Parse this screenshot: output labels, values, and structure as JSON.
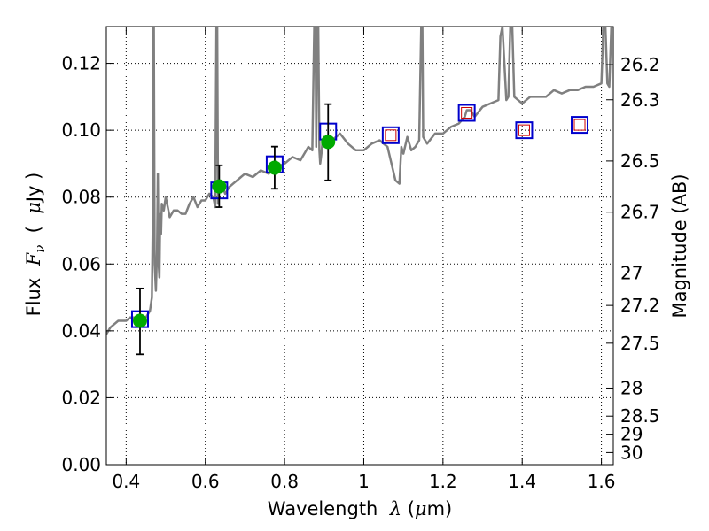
{
  "chart_data": {
    "type": "scatter",
    "title": "",
    "xlabel": {
      "prefix": "Wavelength  ",
      "lambda": "λ",
      "unit_open": " (",
      "mu": "μ",
      "unit_close": "m)"
    },
    "ylabel": {
      "prefix": "Flux  ",
      "symbol": "F",
      "sub": "ν",
      "unit_open": "  (  ",
      "mu": "μ",
      "unit_close": "Jy )"
    },
    "y2label": "Magnitude (AB)",
    "xlim": [
      0.35,
      1.63
    ],
    "ylim": [
      0.0,
      0.131
    ],
    "grid": true,
    "x_ticks": [
      {
        "v": 0.4,
        "label": "0.4"
      },
      {
        "v": 0.6,
        "label": "0.6"
      },
      {
        "v": 0.8,
        "label": "0.8"
      },
      {
        "v": 1.0,
        "label": "1"
      },
      {
        "v": 1.2,
        "label": "1.2"
      },
      {
        "v": 1.4,
        "label": "1.4"
      },
      {
        "v": 1.6,
        "label": "1.6"
      }
    ],
    "y_ticks": [
      {
        "v": 0.0,
        "label": "0.00"
      },
      {
        "v": 0.02,
        "label": "0.02"
      },
      {
        "v": 0.04,
        "label": "0.04"
      },
      {
        "v": 0.06,
        "label": "0.06"
      },
      {
        "v": 0.08,
        "label": "0.08"
      },
      {
        "v": 0.1,
        "label": "0.10"
      },
      {
        "v": 0.12,
        "label": "0.12"
      }
    ],
    "y2_ticks": [
      {
        "label": "26.2",
        "flux": 0.1196
      },
      {
        "label": "26.3",
        "flux": 0.1091
      },
      {
        "label": "26.5",
        "flux": 0.0908
      },
      {
        "label": "26.7",
        "flux": 0.0755
      },
      {
        "label": "27",
        "flux": 0.0573
      },
      {
        "label": "27.2",
        "flux": 0.0476
      },
      {
        "label": "27.5",
        "flux": 0.0363
      },
      {
        "label": "28",
        "flux": 0.0229
      },
      {
        "label": "28.5",
        "flux": 0.0145
      },
      {
        "label": "29",
        "flux": 0.0091
      },
      {
        "label": "30",
        "flux": 0.0036
      }
    ],
    "colors": {
      "spectrum": "#808080",
      "observed": "#00aa00",
      "errorbar": "#000000",
      "model_band": "#0000cc",
      "model_band_inner": "#cc0000",
      "grid": "#000000"
    },
    "spectrum": {
      "x": [
        0.35,
        0.36,
        0.37,
        0.38,
        0.39,
        0.4,
        0.41,
        0.42,
        0.43,
        0.44,
        0.45,
        0.46,
        0.465,
        0.467,
        0.468,
        0.47,
        0.472,
        0.475,
        0.478,
        0.48,
        0.482,
        0.484,
        0.486,
        0.488,
        0.49,
        0.495,
        0.5,
        0.505,
        0.51,
        0.52,
        0.53,
        0.54,
        0.55,
        0.56,
        0.57,
        0.58,
        0.59,
        0.6,
        0.61,
        0.62,
        0.625,
        0.628,
        0.63,
        0.632,
        0.635,
        0.64,
        0.65,
        0.66,
        0.67,
        0.68,
        0.69,
        0.7,
        0.72,
        0.74,
        0.76,
        0.78,
        0.8,
        0.82,
        0.84,
        0.86,
        0.87,
        0.875,
        0.878,
        0.88,
        0.882,
        0.885,
        0.888,
        0.89,
        0.893,
        0.896,
        0.9,
        0.92,
        0.94,
        0.96,
        0.98,
        1.0,
        1.02,
        1.04,
        1.06,
        1.08,
        1.09,
        1.095,
        1.1,
        1.11,
        1.12,
        1.13,
        1.14,
        1.145,
        1.148,
        1.15,
        1.155,
        1.16,
        1.18,
        1.2,
        1.22,
        1.24,
        1.255,
        1.26,
        1.27,
        1.28,
        1.3,
        1.32,
        1.34,
        1.345,
        1.35,
        1.36,
        1.365,
        1.37,
        1.375,
        1.38,
        1.4,
        1.42,
        1.44,
        1.46,
        1.48,
        1.5,
        1.52,
        1.54,
        1.56,
        1.58,
        1.6,
        1.605,
        1.61,
        1.615,
        1.62,
        1.625,
        1.63
      ],
      "y": [
        0.039,
        0.041,
        0.042,
        0.043,
        0.043,
        0.043,
        0.044,
        0.044,
        0.044,
        0.044,
        0.044,
        0.046,
        0.05,
        0.07,
        0.131,
        0.131,
        0.06,
        0.052,
        0.064,
        0.087,
        0.06,
        0.056,
        0.075,
        0.069,
        0.078,
        0.076,
        0.08,
        0.077,
        0.074,
        0.076,
        0.076,
        0.075,
        0.075,
        0.078,
        0.08,
        0.077,
        0.079,
        0.079,
        0.081,
        0.08,
        0.077,
        0.131,
        0.131,
        0.078,
        0.083,
        0.084,
        0.081,
        0.083,
        0.084,
        0.085,
        0.086,
        0.087,
        0.086,
        0.088,
        0.087,
        0.089,
        0.09,
        0.092,
        0.091,
        0.095,
        0.094,
        0.131,
        0.131,
        0.095,
        0.131,
        0.131,
        0.094,
        0.09,
        0.093,
        0.097,
        0.098,
        0.097,
        0.099,
        0.096,
        0.094,
        0.094,
        0.096,
        0.097,
        0.095,
        0.085,
        0.084,
        0.095,
        0.093,
        0.098,
        0.094,
        0.095,
        0.097,
        0.131,
        0.131,
        0.098,
        0.097,
        0.096,
        0.099,
        0.099,
        0.101,
        0.102,
        0.104,
        0.106,
        0.106,
        0.104,
        0.107,
        0.108,
        0.109,
        0.128,
        0.131,
        0.109,
        0.11,
        0.131,
        0.131,
        0.11,
        0.108,
        0.11,
        0.11,
        0.11,
        0.112,
        0.111,
        0.112,
        0.112,
        0.113,
        0.113,
        0.114,
        0.131,
        0.131,
        0.114,
        0.113,
        0.131,
        0.131
      ]
    },
    "observed": [
      {
        "x": 0.435,
        "y": 0.043,
        "yerr_low": 0.01,
        "yerr_high": 0.0097
      },
      {
        "x": 0.635,
        "y": 0.0832,
        "yerr_low": 0.0062,
        "yerr_high": 0.0063
      },
      {
        "x": 0.775,
        "y": 0.0888,
        "yerr_low": 0.0063,
        "yerr_high": 0.0063
      },
      {
        "x": 0.91,
        "y": 0.0965,
        "yerr_low": 0.0115,
        "yerr_high": 0.0113
      }
    ],
    "model_bands": [
      {
        "x": 0.435,
        "y": 0.0435,
        "inner": false
      },
      {
        "x": 0.635,
        "y": 0.082,
        "inner": false
      },
      {
        "x": 0.775,
        "y": 0.0898,
        "inner": false
      },
      {
        "x": 0.91,
        "y": 0.0996,
        "inner": false
      },
      {
        "x": 1.068,
        "y": 0.0985,
        "inner": true
      },
      {
        "x": 1.26,
        "y": 0.1052,
        "inner": true
      },
      {
        "x": 1.405,
        "y": 0.1,
        "inner": true
      },
      {
        "x": 1.545,
        "y": 0.1016,
        "inner": true
      }
    ]
  }
}
